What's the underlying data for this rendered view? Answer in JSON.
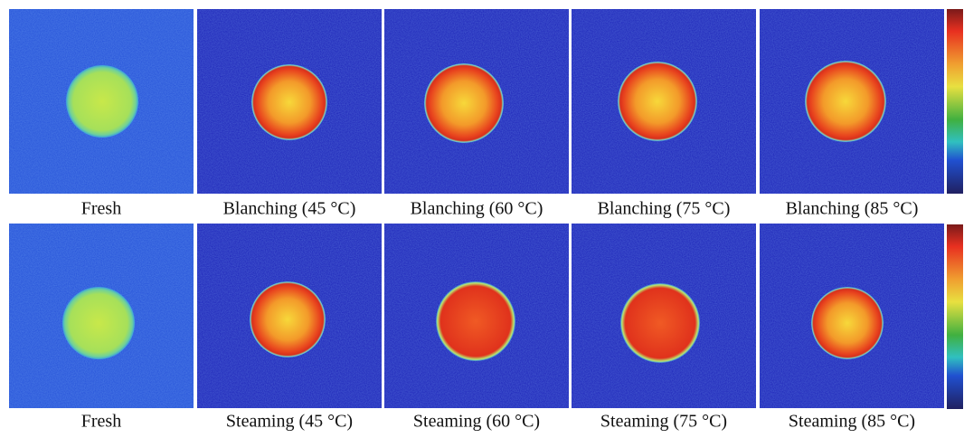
{
  "rows": [
    {
      "panels": [
        {
          "label": "Fresh"
        },
        {
          "label": "Blanching (45 °C)"
        },
        {
          "label": "Blanching (60 °C)"
        },
        {
          "label": "Blanching (75 °C)"
        },
        {
          "label": "Blanching (85 °C)"
        }
      ]
    },
    {
      "panels": [
        {
          "label": "Fresh"
        },
        {
          "label": "Steaming (45 °C)"
        },
        {
          "label": "Steaming (60 °C)"
        },
        {
          "label": "Steaming (75 °C)"
        },
        {
          "label": "Steaming (85 °C)"
        }
      ]
    }
  ]
}
